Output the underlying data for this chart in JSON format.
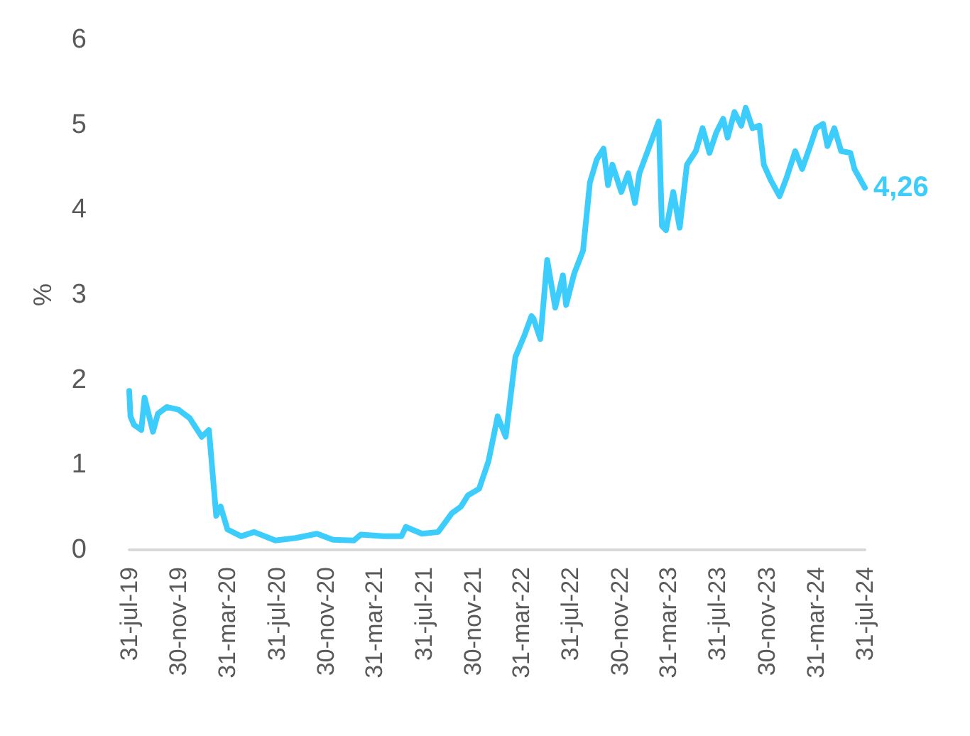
{
  "chart_data": {
    "type": "line",
    "ylabel": "%",
    "x": [
      "2019-07-31",
      "2019-08-03",
      "2019-08-12",
      "2019-08-30",
      "2019-09-07",
      "2019-09-28",
      "2019-10-10",
      "2019-11-01",
      "2019-11-30",
      "2019-12-28",
      "2020-01-27",
      "2020-02-14",
      "2020-03-03",
      "2020-03-14",
      "2020-03-31",
      "2020-05-04",
      "2020-06-05",
      "2020-07-28",
      "2020-09-17",
      "2020-11-08",
      "2020-12-18",
      "2021-02-08",
      "2021-02-25",
      "2021-04-22",
      "2021-06-06",
      "2021-06-17",
      "2021-07-27",
      "2021-09-05",
      "2021-10-09",
      "2021-11-01",
      "2021-11-18",
      "2021-12-16",
      "2022-01-08",
      "2022-01-31",
      "2022-02-20",
      "2022-03-16",
      "2022-04-08",
      "2022-04-25",
      "2022-04-30",
      "2022-05-17",
      "2022-06-03",
      "2022-06-23",
      "2022-07-12",
      "2022-07-20",
      "2022-08-09",
      "2022-08-31",
      "2022-09-17",
      "2022-10-04",
      "2022-10-21",
      "2022-11-01",
      "2022-11-12",
      "2022-12-04",
      "2022-12-21",
      "2023-01-07",
      "2023-01-18",
      "2023-03-07",
      "2023-03-15",
      "2023-03-25",
      "2023-04-12",
      "2023-04-28",
      "2023-05-16",
      "2023-06-07",
      "2023-06-24",
      "2023-07-11",
      "2023-07-28",
      "2023-08-14",
      "2023-08-25",
      "2023-09-11",
      "2023-09-28",
      "2023-10-09",
      "2023-10-26",
      "2023-11-12",
      "2023-11-23",
      "2023-12-10",
      "2024-01-01",
      "2024-01-18",
      "2024-02-09",
      "2024-02-26",
      "2024-03-15",
      "2024-04-01",
      "2024-04-18",
      "2024-04-29",
      "2024-05-16",
      "2024-06-02",
      "2024-06-25",
      "2024-07-05",
      "2024-07-31"
    ],
    "series": [
      {
        "color": "#3dcdfc",
        "values": [
          1.87,
          1.57,
          1.47,
          1.41,
          1.79,
          1.39,
          1.6,
          1.68,
          1.65,
          1.55,
          1.33,
          1.41,
          0.4,
          0.51,
          0.24,
          0.16,
          0.21,
          0.11,
          0.14,
          0.19,
          0.12,
          0.11,
          0.18,
          0.16,
          0.16,
          0.27,
          0.19,
          0.21,
          0.43,
          0.51,
          0.64,
          0.72,
          1.04,
          1.57,
          1.33,
          2.27,
          2.53,
          2.75,
          2.72,
          2.48,
          3.41,
          2.85,
          3.23,
          2.88,
          3.25,
          3.52,
          4.32,
          4.59,
          4.72,
          4.29,
          4.53,
          4.21,
          4.43,
          4.08,
          4.43,
          5.04,
          3.81,
          3.76,
          4.21,
          3.79,
          4.53,
          4.69,
          4.96,
          4.67,
          4.91,
          5.07,
          4.85,
          5.15,
          4.99,
          5.2,
          4.96,
          4.99,
          4.53,
          4.35,
          4.16,
          4.37,
          4.69,
          4.48,
          4.72,
          4.96,
          5.01,
          4.75,
          4.96,
          4.69,
          4.67,
          4.48,
          4.26
        ]
      }
    ],
    "xlim": [
      "2019-07-31",
      "2024-07-31"
    ],
    "xticks": [
      {
        "value": "2019-07-31",
        "label": "31-jul-19"
      },
      {
        "value": "2019-11-30",
        "label": "30-nov-19"
      },
      {
        "value": "2020-03-31",
        "label": "31-mar-20"
      },
      {
        "value": "2020-07-31",
        "label": "31-jul-20"
      },
      {
        "value": "2020-11-30",
        "label": "30-nov-20"
      },
      {
        "value": "2021-03-31",
        "label": "31-mar-21"
      },
      {
        "value": "2021-07-31",
        "label": "31-jul-21"
      },
      {
        "value": "2021-11-30",
        "label": "30-nov-21"
      },
      {
        "value": "2022-03-31",
        "label": "31-mar-22"
      },
      {
        "value": "2022-07-31",
        "label": "31-jul-22"
      },
      {
        "value": "2022-11-30",
        "label": "30-nov-22"
      },
      {
        "value": "2023-03-31",
        "label": "31-mar-23"
      },
      {
        "value": "2023-07-31",
        "label": "31-jul-23"
      },
      {
        "value": "2023-11-30",
        "label": "30-nov-23"
      },
      {
        "value": "2024-03-31",
        "label": "31-mar-24"
      },
      {
        "value": "2024-07-31",
        "label": "31-jul-24"
      }
    ],
    "ylim": [
      0,
      6
    ],
    "yticks": [
      0,
      1,
      2,
      3,
      4,
      5,
      6
    ],
    "annotations": [
      {
        "text": "4,26",
        "x": "2024-07-31",
        "y": 4.26
      }
    ],
    "grid": false,
    "marker": "none",
    "line_style": "solid"
  }
}
